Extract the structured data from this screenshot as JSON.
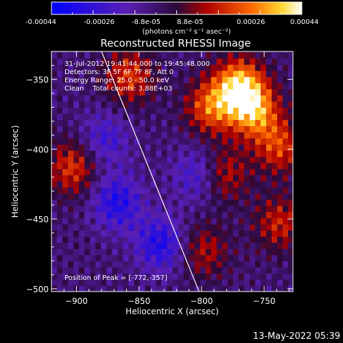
{
  "colorbar": {
    "tick_labels": [
      "-0.00044",
      "-0.00026",
      "-8.8e-05",
      "8.8e-05",
      "0.00026",
      "0.00044"
    ],
    "unit_label": "(photons cm⁻² s⁻¹ asec⁻²)"
  },
  "plot": {
    "title": "Reconstructed RHESSI Image",
    "info_lines": [
      "31-Jul-2012 19:41:44.000 to 19:45:48.000",
      "Detectors: 3F 5F 6F 7F 8F, Att 0",
      "Energy Range: 25.0 - 50.0 keV",
      "Clean    Total counts: 3.88E+03"
    ],
    "peak_label": "Position of Peak = [-772,-357]",
    "xlabel": "Heliocentric X (arcsec)",
    "ylabel": "Heliocentric Y (arcsec)"
  },
  "chart_data": {
    "type": "heatmap",
    "title": "Reconstructed RHESSI Image",
    "xlabel": "Heliocentric X (arcsec)",
    "ylabel": "Heliocentric Y (arcsec)",
    "xlim": [
      -920,
      -727
    ],
    "ylim": [
      -502,
      -330
    ],
    "x_ticks": [
      -900,
      -850,
      -800,
      -750
    ],
    "y_ticks": [
      -350,
      -400,
      -450,
      -500
    ],
    "colorbar_range": [
      -0.00044,
      0.00044
    ],
    "colormap": "blue-purple-red-yellow-white",
    "limb_line": [
      [
        -880,
        -330
      ],
      [
        -802,
        -502
      ]
    ],
    "peak_position": [
      -772,
      -357
    ],
    "hot_regions": [
      {
        "x": -772,
        "y": -357,
        "value": 0.00044
      },
      {
        "x": -760,
        "y": -375,
        "value": 0.00035
      },
      {
        "x": -795,
        "y": -372,
        "value": 0.0003
      },
      {
        "x": -860,
        "y": -350,
        "value": 0.00026
      },
      {
        "x": -905,
        "y": -415,
        "value": 0.00026
      },
      {
        "x": -785,
        "y": -420,
        "value": 0.00022
      },
      {
        "x": -740,
        "y": -400,
        "value": 0.00026
      },
      {
        "x": -740,
        "y": -455,
        "value": 0.00022
      },
      {
        "x": -800,
        "y": -475,
        "value": 0.00018
      }
    ],
    "cold_regions": [
      {
        "x": -870,
        "y": -440,
        "value": -0.00026
      },
      {
        "x": -835,
        "y": -470,
        "value": -0.00026
      },
      {
        "x": -805,
        "y": -420,
        "value": -0.0002
      },
      {
        "x": -880,
        "y": -395,
        "value": -0.00018
      }
    ]
  },
  "footer": {
    "timestamp": "13-May-2022 05:39"
  }
}
